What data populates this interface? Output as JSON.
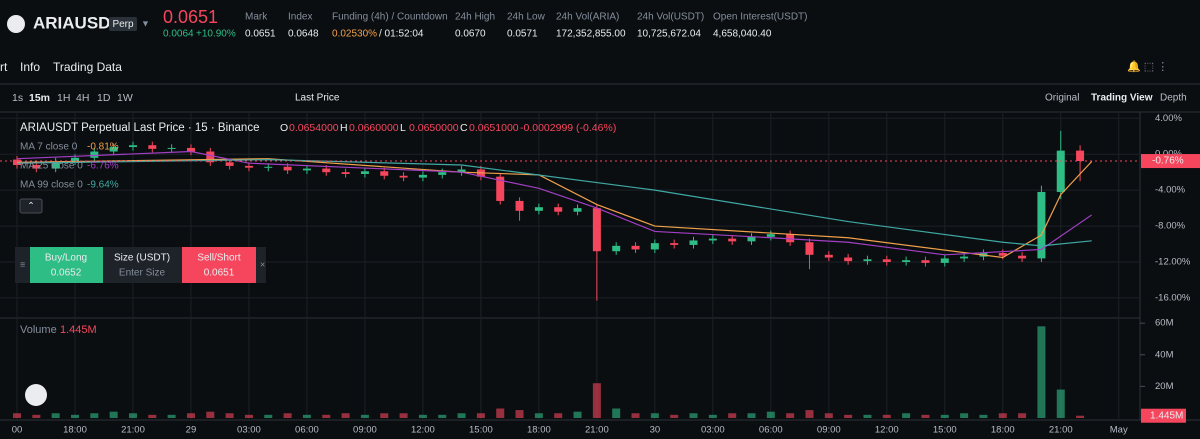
{
  "header": {
    "symbol": "ARIAUSDT",
    "badge": "Perp",
    "price": "0.0651",
    "change": "0.0064",
    "change_pct": "+10.90%",
    "stats": [
      {
        "label": "Mark",
        "value": "0.0651"
      },
      {
        "label": "Index",
        "value": "0.0648"
      },
      {
        "label": "Funding (4h) / Countdown",
        "value": "0.02530%",
        "extra": "/ 01:52:04"
      },
      {
        "label": "24h High",
        "value": "0.0670"
      },
      {
        "label": "24h Low",
        "value": "0.0571"
      },
      {
        "label": "24h Vol(ARIA)",
        "value": "172,352,855.00"
      },
      {
        "label": "24h Vol(USDT)",
        "value": "10,725,672.04"
      },
      {
        "label": "Open Interest(USDT)",
        "value": "4,658,040.40"
      }
    ]
  },
  "tabs": [
    "rt",
    "Info",
    "Trading Data"
  ],
  "toolbar": {
    "intervals": [
      "1s",
      "15m",
      "1H",
      "4H",
      "1D",
      "1W"
    ],
    "price_type": "Last Price",
    "views": [
      "Original",
      "Trading View",
      "Depth"
    ]
  },
  "trade_box": {
    "buy": "Buy/Long",
    "buy_price": "0.0652",
    "size": "Size (USDT)",
    "size_placeholder": "Enter Size",
    "sell": "Sell/Short",
    "sell_price": "0.0651"
  },
  "chart_data": {
    "type": "candlestick",
    "title": "ARIAUSDT Perpetual Last Price · 15 · Binance",
    "ohlc_labels": [
      {
        "key": "O",
        "value": "0.0654000"
      },
      {
        "key": "H",
        "value": "0.0660000"
      },
      {
        "key": "L",
        "value": "0.0650000"
      },
      {
        "key": "C",
        "value": "0.0651000"
      }
    ],
    "change_label": "-0.0002999 (-0.46%)",
    "up_color": "#2ebd85",
    "down_color": "#f6465d",
    "grid": true,
    "x": [
      -3,
      -2,
      -1,
      0,
      1,
      2,
      3,
      4,
      5,
      6,
      7,
      8,
      9,
      10,
      11,
      12,
      13,
      14,
      15,
      16,
      17,
      18,
      19,
      20,
      21,
      22,
      23,
      24,
      25,
      26,
      27,
      28,
      29,
      30,
      31,
      32,
      33,
      34,
      35,
      36,
      37,
      38,
      39,
      40,
      41,
      42,
      43,
      44,
      45,
      46,
      47,
      48,
      49,
      50,
      51,
      52
    ],
    "open": [
      -0.6,
      -1.2,
      -1.6,
      -0.8,
      -0.4,
      0.3,
      0.8,
      1.0,
      0.6,
      0.7,
      0.3,
      -0.9,
      -1.3,
      -1.5,
      -1.4,
      -1.8,
      -1.6,
      -2.0,
      -2.2,
      -1.9,
      -2.4,
      -2.6,
      -2.3,
      -2.0,
      -1.7,
      -2.5,
      -5.2,
      -6.3,
      -5.9,
      -6.4,
      -6.0,
      -10.8,
      -10.2,
      -10.6,
      -9.9,
      -10.1,
      -9.6,
      -9.4,
      -9.7,
      -9.2,
      -8.9,
      -9.8,
      -11.2,
      -11.5,
      -11.9,
      -11.7,
      -12.0,
      -11.8,
      -12.1,
      -11.6,
      -11.4,
      -11.0,
      -11.3,
      -11.6,
      -4.2,
      0.4
    ],
    "high": [
      -0.2,
      -0.8,
      -0.4,
      0.0,
      0.7,
      1.2,
      1.4,
      1.4,
      1.1,
      1.1,
      0.7,
      -0.5,
      -0.9,
      -1.0,
      -1.0,
      -1.2,
      -1.2,
      -1.6,
      -1.5,
      -1.5,
      -2.0,
      -1.9,
      -1.6,
      -1.3,
      -1.3,
      -2.1,
      -4.8,
      -5.5,
      -5.5,
      -5.6,
      -5.6,
      -9.8,
      -9.8,
      -9.5,
      -9.5,
      -9.2,
      -9.0,
      -9.0,
      -8.8,
      -8.5,
      -8.5,
      -9.4,
      -10.8,
      -11.1,
      -11.3,
      -11.3,
      -11.4,
      -11.4,
      -11.2,
      -11.0,
      -10.6,
      -10.6,
      -10.9,
      -3.5,
      2.6,
      1.0
    ],
    "low": [
      -1.6,
      -2.0,
      -2.0,
      -1.2,
      -0.8,
      -0.1,
      0.4,
      0.2,
      0.2,
      -0.1,
      -1.3,
      -1.7,
      -1.9,
      -1.9,
      -2.2,
      -2.2,
      -2.4,
      -2.6,
      -2.6,
      -2.8,
      -3.0,
      -3.0,
      -2.7,
      -2.4,
      -2.9,
      -5.6,
      -7.4,
      -6.7,
      -6.8,
      -6.8,
      -16.3,
      -11.2,
      -11.0,
      -11.0,
      -10.5,
      -10.5,
      -10.0,
      -10.1,
      -10.1,
      -9.6,
      -10.2,
      -12.8,
      -11.9,
      -12.3,
      -12.3,
      -12.4,
      -12.4,
      -12.5,
      -12.5,
      -12.0,
      -11.8,
      -11.7,
      -12.0,
      -12.0,
      -5.0,
      -3.0
    ],
    "close": [
      -1.2,
      -1.6,
      -0.8,
      -0.4,
      0.3,
      0.8,
      1.0,
      0.6,
      0.7,
      0.3,
      -0.9,
      -1.3,
      -1.5,
      -1.4,
      -1.8,
      -1.6,
      -2.0,
      -2.2,
      -1.9,
      -2.4,
      -2.6,
      -2.3,
      -2.0,
      -1.7,
      -2.5,
      -5.2,
      -6.3,
      -5.9,
      -6.4,
      -6.0,
      -10.8,
      -10.2,
      -10.6,
      -9.9,
      -10.1,
      -9.6,
      -9.4,
      -9.7,
      -9.2,
      -8.9,
      -9.8,
      -11.2,
      -11.5,
      -11.9,
      -11.7,
      -12.0,
      -11.8,
      -12.1,
      -11.6,
      -11.4,
      -11.0,
      -11.3,
      -11.6,
      -4.2,
      0.4,
      -0.76
    ],
    "last_label": "-0.76%",
    "volume": [
      3,
      2,
      3,
      2,
      3,
      4,
      3,
      2,
      2,
      3,
      4,
      3,
      2,
      2,
      3,
      2,
      2,
      3,
      2,
      3,
      3,
      2,
      2,
      3,
      3,
      6,
      5,
      3,
      3,
      4,
      22,
      6,
      3,
      3,
      2,
      3,
      2,
      3,
      3,
      4,
      3,
      5,
      3,
      2,
      2,
      2,
      3,
      2,
      2,
      3,
      2,
      3,
      3,
      58,
      18,
      1.445
    ],
    "volume_title": "Volume",
    "volume_label": "1.445M",
    "ma": [
      {
        "name": "MA 7 close 0",
        "color": "#f0a04b",
        "last_label": "-0.81%",
        "x": [
          -3,
          10,
          20,
          24,
          27,
          30,
          40,
          48,
          50,
          51,
          52.6
        ],
        "values": [
          -0.9,
          -0.5,
          -2.0,
          -2.3,
          -5.6,
          -8.0,
          -9.3,
          -11.5,
          -9.0,
          -4.5,
          -0.81
        ]
      },
      {
        "name": "MA 25 close 0",
        "color": "#a23fc4",
        "last_label": "-6.76%",
        "x": [
          -3,
          6,
          9,
          20,
          24,
          27,
          30,
          36,
          40,
          45,
          50,
          52.6
        ],
        "values": [
          -0.5,
          0.3,
          -1.0,
          -2.0,
          -3.8,
          -6.0,
          -8.6,
          -9.3,
          -9.8,
          -11.2,
          -10.6,
          -6.76
        ]
      },
      {
        "name": "MA 99 close 0",
        "color": "#3fa9a4",
        "last_label": "-9.64%",
        "x": [
          -3,
          10,
          20,
          30,
          40,
          48,
          50,
          52.6
        ],
        "values": [
          -1.0,
          -0.6,
          -1.2,
          -4.0,
          -7.5,
          -9.8,
          -10.2,
          -9.64
        ]
      }
    ],
    "xlim": [
      -3.88,
      55.1
    ],
    "ylim": [
      -17.9,
      4.7
    ],
    "vlim": [
      0,
      62
    ],
    "xticks": [
      {
        "value": -3,
        "label": "00"
      },
      {
        "value": 0,
        "label": "18:00"
      },
      {
        "value": 3,
        "label": "21:00"
      },
      {
        "value": 6,
        "label": "29"
      },
      {
        "value": 9,
        "label": "03:00"
      },
      {
        "value": 12,
        "label": "06:00"
      },
      {
        "value": 15,
        "label": "09:00"
      },
      {
        "value": 18,
        "label": "12:00"
      },
      {
        "value": 21,
        "label": "15:00"
      },
      {
        "value": 24,
        "label": "18:00"
      },
      {
        "value": 27,
        "label": "21:00"
      },
      {
        "value": 30,
        "label": "30"
      },
      {
        "value": 33,
        "label": "03:00"
      },
      {
        "value": 36,
        "label": "06:00"
      },
      {
        "value": 39,
        "label": "09:00"
      },
      {
        "value": 42,
        "label": "12:00"
      },
      {
        "value": 45,
        "label": "15:00"
      },
      {
        "value": 48,
        "label": "18:00"
      },
      {
        "value": 51,
        "label": "21:00"
      },
      {
        "value": 54,
        "label": "May"
      }
    ],
    "yticks": [
      {
        "value": 4,
        "label": "4.00%"
      },
      {
        "value": 0,
        "label": "0.00%"
      },
      {
        "value": -4,
        "label": "-4.00%"
      },
      {
        "value": -8,
        "label": "-8.00%"
      },
      {
        "value": -12,
        "label": "-12.00%"
      },
      {
        "value": -16,
        "label": "-16.00%"
      }
    ],
    "vticks": [
      {
        "value": 60,
        "label": "60M"
      },
      {
        "value": 40,
        "label": "40M"
      },
      {
        "value": 20,
        "label": "20M"
      }
    ]
  }
}
